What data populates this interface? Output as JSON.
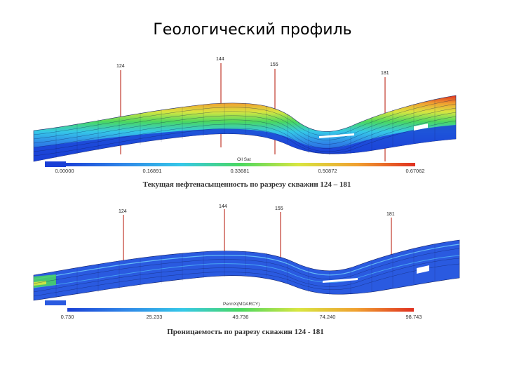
{
  "title": "Геологический профиль",
  "panels": [
    {
      "id": "top",
      "property_label": "Oil Sat",
      "colorbar_ticks": [
        "0.00000",
        "0.16891",
        "0.33681",
        "0.50872",
        "0.67062"
      ],
      "caption": "Текущая нефтенасыщенность по разрезу скважин 124 – 181",
      "wells": [
        "124",
        "144",
        "155",
        "181"
      ],
      "colorscale": [
        "#1a3fd6",
        "#2f86e8",
        "#35c8e8",
        "#4ad860",
        "#d8e640",
        "#f0a030",
        "#e03020"
      ]
    },
    {
      "id": "bottom",
      "property_label": "PermX(MDARCY)",
      "colorbar_ticks": [
        "0.730",
        "25.233",
        "49.736",
        "74.240",
        "98.743"
      ],
      "caption": "Проницаемость по разрезу скважин 124 - 181",
      "wells": [
        "124",
        "144",
        "155",
        "181"
      ],
      "colorscale": [
        "#1a3fd6",
        "#2f86e8",
        "#35c8e8",
        "#4ad860",
        "#d8e640",
        "#f0a030",
        "#e03020"
      ]
    }
  ]
}
